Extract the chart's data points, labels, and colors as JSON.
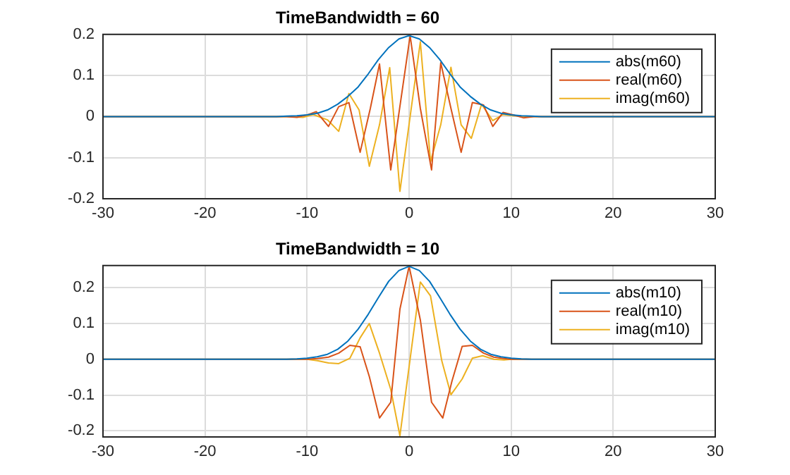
{
  "chart_data": [
    {
      "type": "line",
      "title": "TimeBandwidth = 60",
      "xlim": [
        -30,
        30
      ],
      "xticks": [
        -30,
        -20,
        -10,
        0,
        10,
        20,
        30
      ],
      "ylim": [
        -0.2,
        0.2
      ],
      "yticks": [
        -0.2,
        -0.1,
        0,
        0.1,
        0.2
      ],
      "grid": true,
      "legend": "top right",
      "marker": "none",
      "line_style": "solid",
      "series": [
        {
          "name": "abs(m60)",
          "color": "#0072bd",
          "x": [
            -30,
            -15,
            -13,
            -12,
            -11,
            -10,
            -9,
            -8,
            -7,
            -6,
            -5,
            -4,
            -3,
            -2,
            -1,
            0,
            1,
            2,
            3,
            4,
            5,
            6,
            7,
            8,
            9,
            10,
            11,
            12,
            13,
            15,
            30
          ],
          "values": [
            0,
            0,
            0,
            0.001,
            0.002,
            0.004,
            0.008,
            0.016,
            0.03,
            0.049,
            0.072,
            0.104,
            0.139,
            0.168,
            0.189,
            0.197,
            0.189,
            0.168,
            0.139,
            0.104,
            0.072,
            0.049,
            0.03,
            0.016,
            0.008,
            0.004,
            0.002,
            0.001,
            0,
            0,
            0
          ]
        },
        {
          "name": "real(m60)",
          "color": "#d95319",
          "x": [
            -30,
            -12,
            -11,
            -10,
            -9.1,
            -7.9,
            -6.9,
            -5.9,
            -4.8,
            -3.8,
            -2.9,
            -1.8,
            0.1,
            1.1,
            2.2,
            3.1,
            4.1,
            5.1,
            6.2,
            7.3,
            8.2,
            9.2,
            10.2,
            11.2,
            12.2,
            30
          ],
          "values": [
            0,
            0,
            -0.002,
            0.004,
            0.012,
            -0.024,
            0.024,
            0.034,
            -0.087,
            0.02,
            0.128,
            -0.13,
            0.197,
            0.02,
            -0.13,
            0.131,
            0.02,
            -0.087,
            0.034,
            0.028,
            -0.024,
            0.01,
            0.004,
            -0.003,
            0,
            0
          ]
        },
        {
          "name": "imag(m60)",
          "color": "#edb120",
          "x": [
            -30,
            -12,
            -10.4,
            -9.4,
            -8,
            -6.9,
            -5.9,
            -4.9,
            -3.9,
            -2.9,
            -1.9,
            -0.9,
            1.1,
            2.1,
            3.1,
            4.1,
            5.1,
            6.1,
            7.1,
            8.2,
            9.2,
            10.2,
            12,
            30
          ],
          "values": [
            0,
            0,
            -0.002,
            0.005,
            -0.008,
            -0.036,
            0.056,
            0.016,
            -0.121,
            -0.02,
            0.119,
            -0.182,
            0.182,
            -0.11,
            -0.02,
            0.12,
            -0.02,
            -0.053,
            0.03,
            -0.01,
            0.005,
            0.002,
            0,
            0
          ]
        }
      ]
    },
    {
      "type": "line",
      "title": "TimeBandwidth = 10",
      "xlim": [
        -30,
        30
      ],
      "xticks": [
        -30,
        -20,
        -10,
        0,
        10,
        20,
        30
      ],
      "ylim": [
        -0.217,
        0.262
      ],
      "yticks": [
        -0.2,
        -0.1,
        0,
        0.1,
        0.2
      ],
      "grid": true,
      "legend": "top right",
      "marker": "none",
      "line_style": "solid",
      "series": [
        {
          "name": "abs(m10)",
          "color": "#0072bd",
          "x": [
            -30,
            -12,
            -11,
            -10,
            -9,
            -8,
            -7,
            -6,
            -5,
            -4,
            -3,
            -2,
            -1,
            0,
            1,
            2,
            3,
            4,
            5,
            6,
            7,
            8,
            9,
            10,
            11,
            12,
            30
          ],
          "values": [
            0,
            0,
            0.001,
            0.003,
            0.007,
            0.014,
            0.028,
            0.051,
            0.084,
            0.126,
            0.173,
            0.218,
            0.248,
            0.26,
            0.248,
            0.218,
            0.173,
            0.126,
            0.084,
            0.051,
            0.028,
            0.014,
            0.007,
            0.003,
            0.001,
            0,
            0
          ]
        },
        {
          "name": "real(m10)",
          "color": "#d95319",
          "x": [
            -30,
            -10,
            -9,
            -7.9,
            -6.9,
            -5.8,
            -4.8,
            -3.9,
            -2.9,
            -1.8,
            -0.9,
            0,
            1.1,
            2.2,
            3.3,
            4.2,
            5.2,
            6.2,
            7.3,
            8.3,
            9.3,
            10,
            30
          ],
          "values": [
            0,
            0,
            0.002,
            0.006,
            0.017,
            0.039,
            0.035,
            -0.048,
            -0.164,
            -0.12,
            0.14,
            0.26,
            0.11,
            -0.12,
            -0.164,
            -0.061,
            0.036,
            0.039,
            0.017,
            0.006,
            0.002,
            0,
            0
          ]
        },
        {
          "name": "imag(m10)",
          "color": "#edb120",
          "x": [
            -30,
            -10,
            -9,
            -7.9,
            -6.9,
            -5.8,
            -4.8,
            -3.9,
            -2.9,
            -1.8,
            -0.9,
            1.1,
            2.1,
            3.2,
            4.1,
            5.2,
            6.2,
            7.2,
            8.3,
            9.3,
            10,
            30
          ],
          "values": [
            0,
            0,
            -0.004,
            -0.01,
            -0.012,
            0.003,
            0.06,
            0.1,
            0.017,
            -0.084,
            -0.214,
            0.216,
            0.177,
            -0.004,
            -0.099,
            -0.055,
            0.003,
            0.01,
            0,
            -0.002,
            0,
            0
          ]
        }
      ]
    }
  ]
}
